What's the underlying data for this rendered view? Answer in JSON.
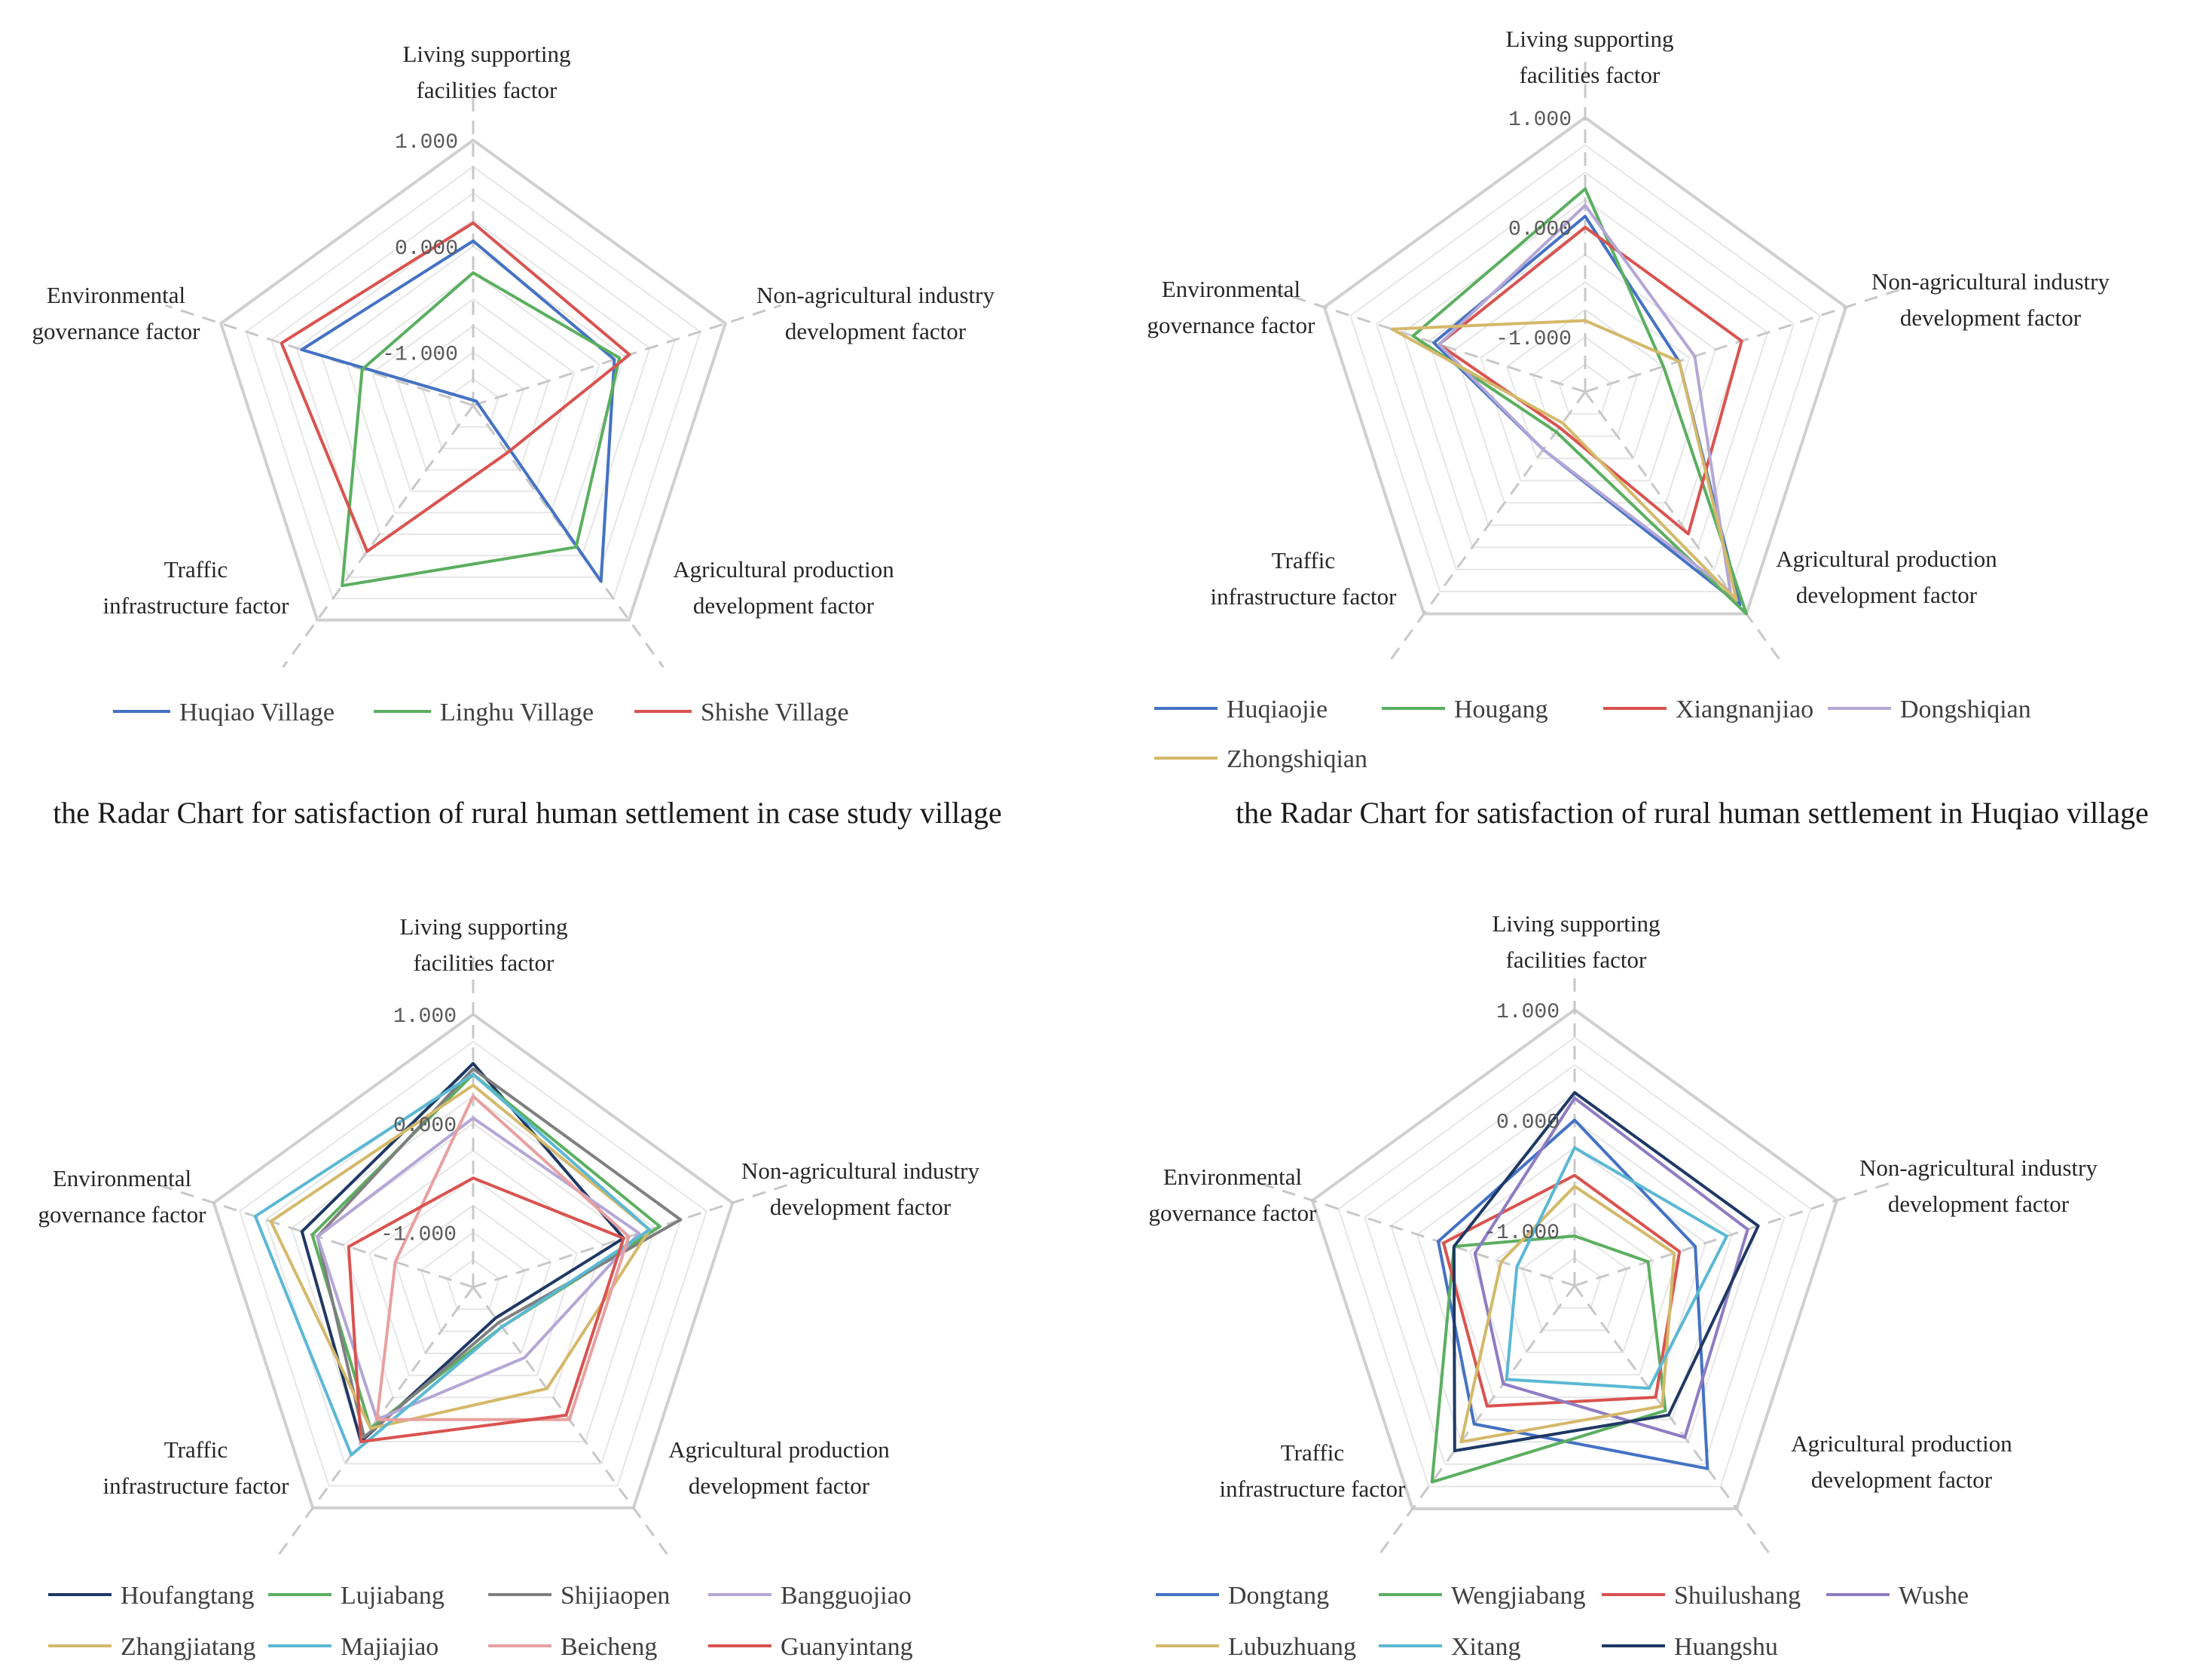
{
  "chart_data": [
    {
      "type": "radar",
      "title": "the Radar Chart for satisfaction of rural human settlement in case study village",
      "axes": [
        [
          "Living supporting",
          "facilities factor"
        ],
        [
          "Non-agricultural industry",
          "development factor"
        ],
        [
          "Agricultural production",
          "development factor"
        ],
        [
          "Traffic",
          "infrastructure factor"
        ],
        [
          "Environmental",
          "governance factor"
        ]
      ],
      "rlim": [
        -1.5,
        1.0
      ],
      "ticks": [
        "1.000",
        "0.000",
        "-1.000"
      ],
      "tick_values": [
        1.0,
        0.0,
        -1.0
      ],
      "series": [
        {
          "name": "Huqiao Village",
          "color": "#4472C4",
          "values": [
            0.05,
            -0.1,
            0.55,
            -1.55,
            0.2
          ]
        },
        {
          "name": "Linghu Village",
          "color": "#5BAF60",
          "values": [
            -0.25,
            -0.05,
            0.15,
            0.6,
            -0.4
          ]
        },
        {
          "name": "Shishe Village",
          "color": "#D9534F",
          "values": [
            0.22,
            0.05,
            -0.95,
            0.2,
            0.4
          ]
        }
      ]
    },
    {
      "type": "radar",
      "title": "the Radar Chart for satisfaction of rural human settlement in Huqiao village",
      "axes": [
        [
          "Living supporting",
          "facilities factor"
        ],
        [
          "Non-agricultural industry",
          "development factor"
        ],
        [
          "Agricultural production",
          "development factor"
        ],
        [
          "Traffic",
          "infrastructure factor"
        ],
        [
          "Environmental",
          "governance factor"
        ]
      ],
      "rlim": [
        -1.5,
        1.0
      ],
      "ticks": [
        "1.000",
        "0.000",
        "-1.000"
      ],
      "tick_values": [
        1.0,
        0.0,
        -1.0
      ],
      "series": [
        {
          "name": "Huqiaojie",
          "color": "#4472C4",
          "values": [
            0.1,
            -0.6,
            0.9,
            -0.85,
            -0.05
          ]
        },
        {
          "name": "Hougang",
          "color": "#5BAF60",
          "values": [
            0.35,
            -0.75,
            1.0,
            -1.05,
            0.15
          ]
        },
        {
          "name": "Xiangnanjiao",
          "color": "#D9534F",
          "values": [
            0.0,
            0.0,
            0.1,
            -1.1,
            -0.1
          ]
        },
        {
          "name": "Dongshiqian",
          "color": "#B4A7D6",
          "values": [
            0.2,
            -0.45,
            0.75,
            -0.85,
            -0.1
          ]
        },
        {
          "name": "Zhongshiqian",
          "color": "#D4B96A",
          "values": [
            -0.85,
            -0.6,
            0.85,
            -1.15,
            0.35
          ]
        }
      ]
    },
    {
      "type": "radar",
      "axes": [
        [
          "Living supporting",
          "facilities factor"
        ],
        [
          "Non-agricultural industry",
          "development factor"
        ],
        [
          "Agricultural production",
          "development factor"
        ],
        [
          "Traffic",
          "infrastructure factor"
        ],
        [
          "Environmental",
          "governance factor"
        ]
      ],
      "rlim": [
        -1.5,
        1.0
      ],
      "ticks": [
        "1.000",
        "0.000",
        "-1.000"
      ],
      "tick_values": [
        1.0,
        0.0,
        -1.0
      ],
      "series": [
        {
          "name": "Houfangtang",
          "color": "#1F3864",
          "values": [
            0.55,
            -0.05,
            -1.15,
            0.25,
            0.15
          ]
        },
        {
          "name": "Lujiabang",
          "color": "#5BAF60",
          "values": [
            0.45,
            0.3,
            -1.05,
            0.1,
            0.05
          ]
        },
        {
          "name": "Shijiaopen",
          "color": "#7F7F7F",
          "values": [
            0.5,
            0.5,
            -1.1,
            0.2,
            0.0
          ]
        },
        {
          "name": "Bangguojiao",
          "color": "#B4A7D6",
          "values": [
            0.05,
            0.1,
            -0.7,
            0.0,
            0.0
          ]
        },
        {
          "name": "Zhangjiatang",
          "color": "#D4B96A",
          "values": [
            0.35,
            0.2,
            -0.35,
            0.1,
            0.45
          ]
        },
        {
          "name": "Majiajiao",
          "color": "#5BB8D4",
          "values": [
            0.45,
            0.2,
            -1.05,
            0.4,
            0.6
          ]
        },
        {
          "name": "Beicheng",
          "color": "#E8A0A0",
          "values": [
            0.25,
            0.0,
            0.0,
            0.0,
            -0.75
          ]
        },
        {
          "name": "Guanyintang",
          "color": "#D9534F",
          "values": [
            -0.5,
            -0.05,
            -0.05,
            0.25,
            -0.3
          ]
        }
      ]
    },
    {
      "type": "radar",
      "axes": [
        [
          "Living supporting",
          "facilities factor"
        ],
        [
          "Non-agricultural industry",
          "development factor"
        ],
        [
          "Agricultural production",
          "development factor"
        ],
        [
          "Traffic",
          "infrastructure factor"
        ],
        [
          "Environmental",
          "governance factor"
        ]
      ],
      "rlim": [
        -1.5,
        1.0
      ],
      "ticks": [
        "1.000",
        "0.000",
        "-1.000"
      ],
      "tick_values": [
        1.0,
        0.0,
        -1.0
      ],
      "series": [
        {
          "name": "Dongtang",
          "color": "#4472C4",
          "values": [
            0.0,
            -0.35,
            0.55,
            0.05,
            -0.2
          ]
        },
        {
          "name": "Wengjiabang",
          "color": "#5BAF60",
          "values": [
            -1.05,
            -0.8,
            -0.1,
            0.7,
            -0.35
          ]
        },
        {
          "name": "Shuilushang",
          "color": "#D9534F",
          "values": [
            -0.5,
            -0.5,
            -0.25,
            -0.15,
            -0.25
          ]
        },
        {
          "name": "Wushe",
          "color": "#8E7CC3",
          "values": [
            0.2,
            0.15,
            0.2,
            -0.4,
            -0.55
          ]
        },
        {
          "name": "Lubuzhuang",
          "color": "#D4B96A",
          "values": [
            -0.6,
            -0.55,
            -0.15,
            0.25,
            -0.8
          ]
        },
        {
          "name": "Xitang",
          "color": "#5BB8D4",
          "values": [
            -0.25,
            -0.05,
            -0.35,
            -0.45,
            -0.95
          ]
        },
        {
          "name": "Huangshu",
          "color": "#1F3864",
          "values": [
            0.25,
            0.25,
            -0.05,
            0.35,
            -0.35
          ]
        }
      ]
    }
  ]
}
